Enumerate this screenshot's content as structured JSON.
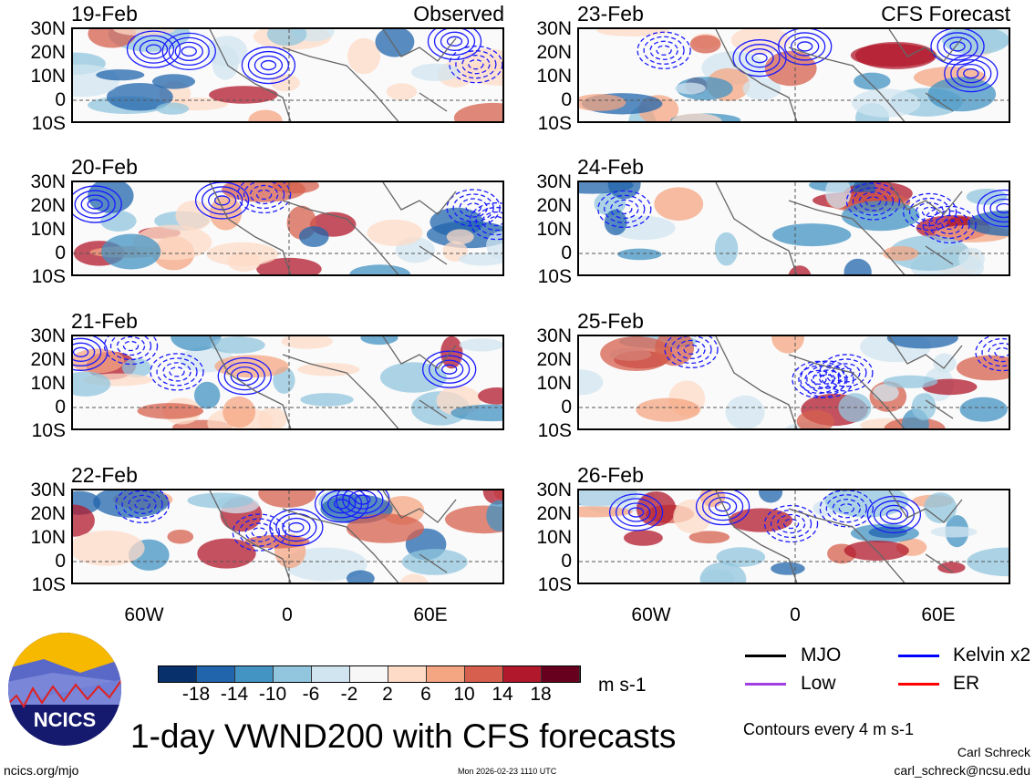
{
  "left_column": {
    "header": "Observed",
    "panels": [
      "19-Feb",
      "20-Feb",
      "21-Feb",
      "22-Feb"
    ]
  },
  "right_column": {
    "header": "CFS Forecast",
    "panels": [
      "23-Feb",
      "24-Feb",
      "25-Feb",
      "26-Feb"
    ]
  },
  "lat_labels": [
    "30N",
    "20N",
    "10N",
    "0",
    "10S"
  ],
  "lon_labels": [
    "60W",
    "0",
    "60E"
  ],
  "colorbar": {
    "labels": [
      "-18",
      "-14",
      "-10",
      "-6",
      "-2",
      "2",
      "6",
      "10",
      "14",
      "18"
    ],
    "colors": [
      "#08306b",
      "#2166ac",
      "#4393c3",
      "#92c5de",
      "#d1e5f0",
      "#f7f7f7",
      "#fddbc7",
      "#f4a582",
      "#d6604d",
      "#b2182b",
      "#67001f"
    ],
    "units": "m s-1"
  },
  "legend": {
    "items": [
      {
        "label": "MJO",
        "color": "#000000"
      },
      {
        "label": "Kelvin x2",
        "color": "#0000ff"
      },
      {
        "label": "Low",
        "color": "#a040e0"
      },
      {
        "label": "ER",
        "color": "#ff0000"
      }
    ],
    "contours_note": "Contours every 4 m s-1"
  },
  "title": "1-day VWND200 with CFS forecasts",
  "logo_text": "NCICS",
  "footer": {
    "url": "ncics.org/mjo",
    "timestamp": "Mon 2026-02-23 1110 UTC",
    "author": "Carl Schreck",
    "email": "carl_schreck@ncsu.edu"
  }
}
